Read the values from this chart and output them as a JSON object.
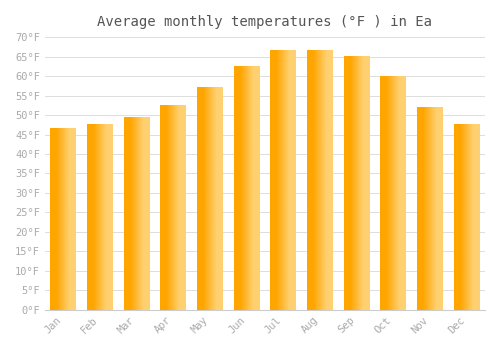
{
  "title": "Average monthly temperatures (°F ) in Ea",
  "months": [
    "Jan",
    "Feb",
    "Mar",
    "Apr",
    "May",
    "Jun",
    "Jul",
    "Aug",
    "Sep",
    "Oct",
    "Nov",
    "Dec"
  ],
  "values": [
    46.5,
    47.5,
    49.5,
    52.5,
    57.0,
    62.5,
    66.5,
    66.5,
    65.0,
    60.0,
    52.0,
    47.5
  ],
  "bar_color_main": "#FFA500",
  "bar_color_light": "#FFD070",
  "ylim": [
    0,
    70
  ],
  "yticks": [
    0,
    5,
    10,
    15,
    20,
    25,
    30,
    35,
    40,
    45,
    50,
    55,
    60,
    65,
    70
  ],
  "ytick_labels": [
    "0°F",
    "5°F",
    "10°F",
    "15°F",
    "20°F",
    "25°F",
    "30°F",
    "35°F",
    "40°F",
    "45°F",
    "50°F",
    "55°F",
    "60°F",
    "65°F",
    "70°F"
  ],
  "background_color": "#ffffff",
  "grid_color": "#dddddd",
  "title_fontsize": 10,
  "tick_fontsize": 7.5,
  "font_family": "monospace",
  "tick_color": "#aaaaaa",
  "bar_width": 0.7
}
